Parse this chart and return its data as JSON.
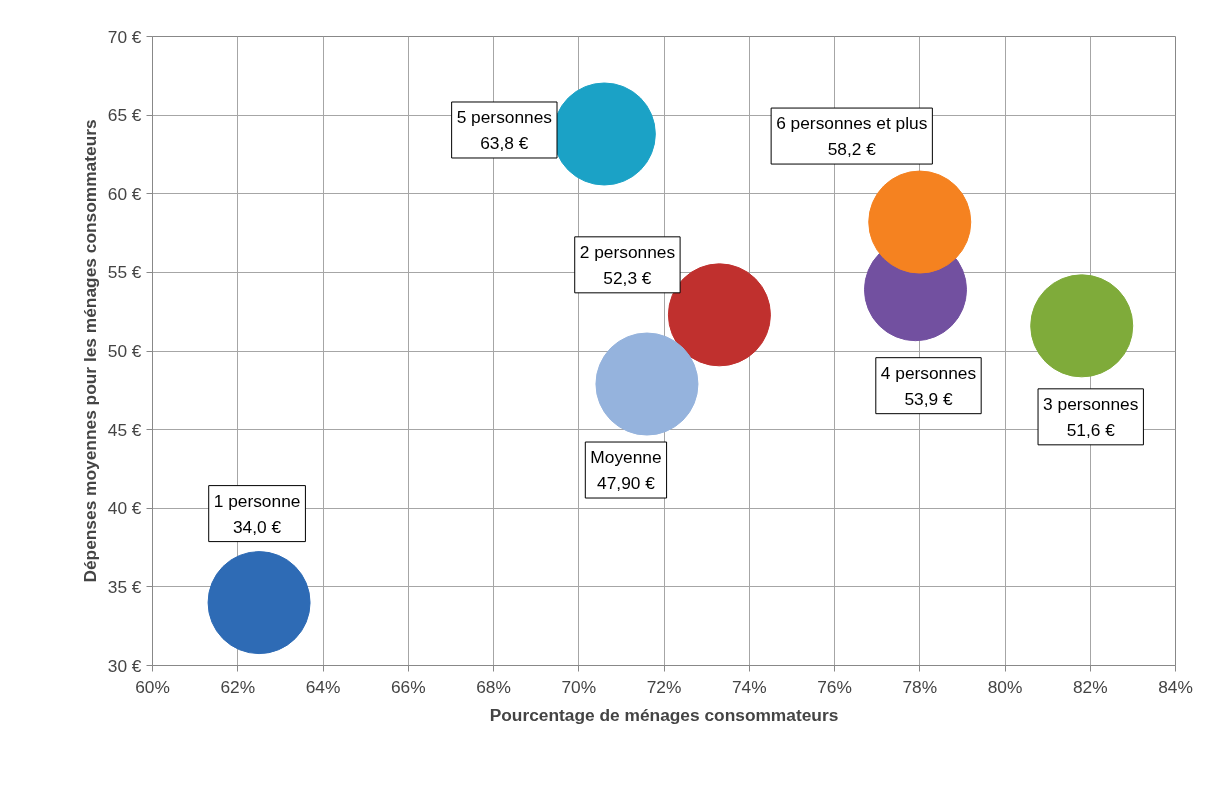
{
  "chart_data": {
    "type": "bubble",
    "xlabel": "Pourcentage de ménages consommateurs",
    "ylabel": "Dépenses moyennes pour les ménages consommateurs",
    "xlim": [
      60,
      84
    ],
    "xticks": [
      {
        "value": 60,
        "label": "60%"
      },
      {
        "value": 62,
        "label": "62%"
      },
      {
        "value": 64,
        "label": "64%"
      },
      {
        "value": 66,
        "label": "66%"
      },
      {
        "value": 68,
        "label": "68%"
      },
      {
        "value": 70,
        "label": "70%"
      },
      {
        "value": 72,
        "label": "72%"
      },
      {
        "value": 74,
        "label": "74%"
      },
      {
        "value": 76,
        "label": "76%"
      },
      {
        "value": 78,
        "label": "78%"
      },
      {
        "value": 80,
        "label": "80%"
      },
      {
        "value": 82,
        "label": "82%"
      },
      {
        "value": 84,
        "label": "84%"
      }
    ],
    "ylim": [
      30,
      70
    ],
    "yticks": [
      {
        "value": 30,
        "label": "30 €"
      },
      {
        "value": 35,
        "label": "35 €"
      },
      {
        "value": 40,
        "label": "40 €"
      },
      {
        "value": 45,
        "label": "45 €"
      },
      {
        "value": 50,
        "label": "50 €"
      },
      {
        "value": 55,
        "label": "55 €"
      },
      {
        "value": 60,
        "label": "60 €"
      },
      {
        "value": 65,
        "label": "65 €"
      },
      {
        "value": 70,
        "label": "70 €"
      }
    ],
    "grid": true,
    "series": [
      {
        "name": "1 personne",
        "color": "#2e6bb5",
        "x": [
          62.5
        ],
        "values": [
          34.0
        ],
        "sizes": [
          1
        ],
        "value_labels": [
          "34,0 €"
        ]
      },
      {
        "name": "5 personnes",
        "color": "#1ba2c6",
        "x": [
          70.6
        ],
        "values": [
          63.8
        ],
        "sizes": [
          1
        ],
        "value_labels": [
          "63,8 €"
        ]
      },
      {
        "name": "2 personnes",
        "color": "#c0302e",
        "x": [
          73.3
        ],
        "values": [
          52.3
        ],
        "sizes": [
          1
        ],
        "value_labels": [
          "52,3 €"
        ]
      },
      {
        "name": "Moyenne",
        "color": "#95b3dd",
        "x": [
          71.6
        ],
        "values": [
          47.9
        ],
        "sizes": [
          1
        ],
        "value_labels": [
          "47,90 €"
        ]
      },
      {
        "name": "4 personnes",
        "color": "#7250a0",
        "x": [
          77.9
        ],
        "values": [
          53.9
        ],
        "sizes": [
          1
        ],
        "value_labels": [
          "53,9 €"
        ]
      },
      {
        "name": "6 personnes et plus",
        "color": "#f58220",
        "x": [
          78.0
        ],
        "values": [
          58.2
        ],
        "sizes": [
          1
        ],
        "value_labels": [
          "58,2 €"
        ]
      },
      {
        "name": "3 personnes",
        "color": "#7fab3a",
        "x": [
          81.8
        ],
        "values": [
          51.6
        ],
        "sizes": [
          1
        ],
        "value_labels": [
          "51,6 €"
        ]
      }
    ]
  }
}
